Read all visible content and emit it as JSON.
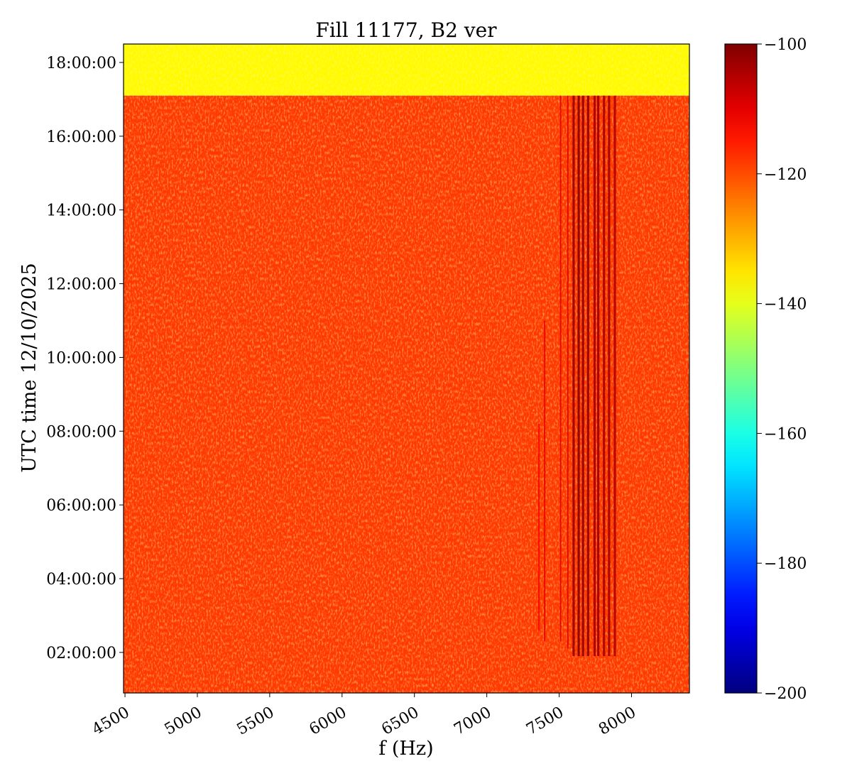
{
  "chart_data": {
    "type": "heatmap",
    "title": "Fill 11177, B2 ver",
    "xlabel": "f (Hz)",
    "ylabel": "UTC time 12/10/2025",
    "xlim": [
      4490,
      8400
    ],
    "x_ticks": [
      4500,
      5000,
      5500,
      6000,
      6500,
      7000,
      7500,
      8000
    ],
    "ylim_hours": [
      0.9,
      18.5
    ],
    "y_ticks": [
      {
        "hours": 2,
        "label": "02:00:00"
      },
      {
        "hours": 4,
        "label": "04:00:00"
      },
      {
        "hours": 6,
        "label": "06:00:00"
      },
      {
        "hours": 8,
        "label": "08:00:00"
      },
      {
        "hours": 10,
        "label": "10:00:00"
      },
      {
        "hours": 12,
        "label": "12:00:00"
      },
      {
        "hours": 14,
        "label": "14:00:00"
      },
      {
        "hours": 16,
        "label": "16:00:00"
      },
      {
        "hours": 18,
        "label": "18:00:00"
      }
    ],
    "colorbar": {
      "colormap": "jet",
      "min": -200,
      "max": -100,
      "ticks": [
        -100,
        -120,
        -140,
        -160,
        -180,
        -200
      ]
    },
    "regions": [
      {
        "t_start_hours": 17.1,
        "t_end_hours": 18.5,
        "level_db": -137
      },
      {
        "t_start_hours": 0.9,
        "t_end_hours": 17.1,
        "level_db": -118
      }
    ],
    "spectral_lines": [
      {
        "f_hz": 7360,
        "t_start_hours": 2.6,
        "t_end_hours": 8.2,
        "level_db": -112
      },
      {
        "f_hz": 7400,
        "t_start_hours": 2.3,
        "t_end_hours": 11.0,
        "level_db": -110
      },
      {
        "f_hz": 7510,
        "t_start_hours": 2.3,
        "t_end_hours": 17.1,
        "level_db": -110
      },
      {
        "f_hz": 7560,
        "t_start_hours": 2.1,
        "t_end_hours": 17.1,
        "level_db": -109
      },
      {
        "f_hz": 7600,
        "t_start_hours": 1.9,
        "t_end_hours": 17.1,
        "level_db": -103
      },
      {
        "f_hz": 7635,
        "t_start_hours": 1.9,
        "t_end_hours": 17.1,
        "level_db": -101
      },
      {
        "f_hz": 7665,
        "t_start_hours": 1.9,
        "t_end_hours": 17.1,
        "level_db": -102
      },
      {
        "f_hz": 7700,
        "t_start_hours": 1.9,
        "t_end_hours": 17.1,
        "level_db": -102
      },
      {
        "f_hz": 7745,
        "t_start_hours": 1.9,
        "t_end_hours": 17.1,
        "level_db": -104
      },
      {
        "f_hz": 7770,
        "t_start_hours": 1.9,
        "t_end_hours": 17.1,
        "level_db": -103
      },
      {
        "f_hz": 7810,
        "t_start_hours": 1.9,
        "t_end_hours": 17.1,
        "level_db": -104
      },
      {
        "f_hz": 7845,
        "t_start_hours": 1.9,
        "t_end_hours": 17.1,
        "level_db": -104
      },
      {
        "f_hz": 7885,
        "t_start_hours": 1.9,
        "t_end_hours": 17.1,
        "level_db": -105
      }
    ]
  }
}
